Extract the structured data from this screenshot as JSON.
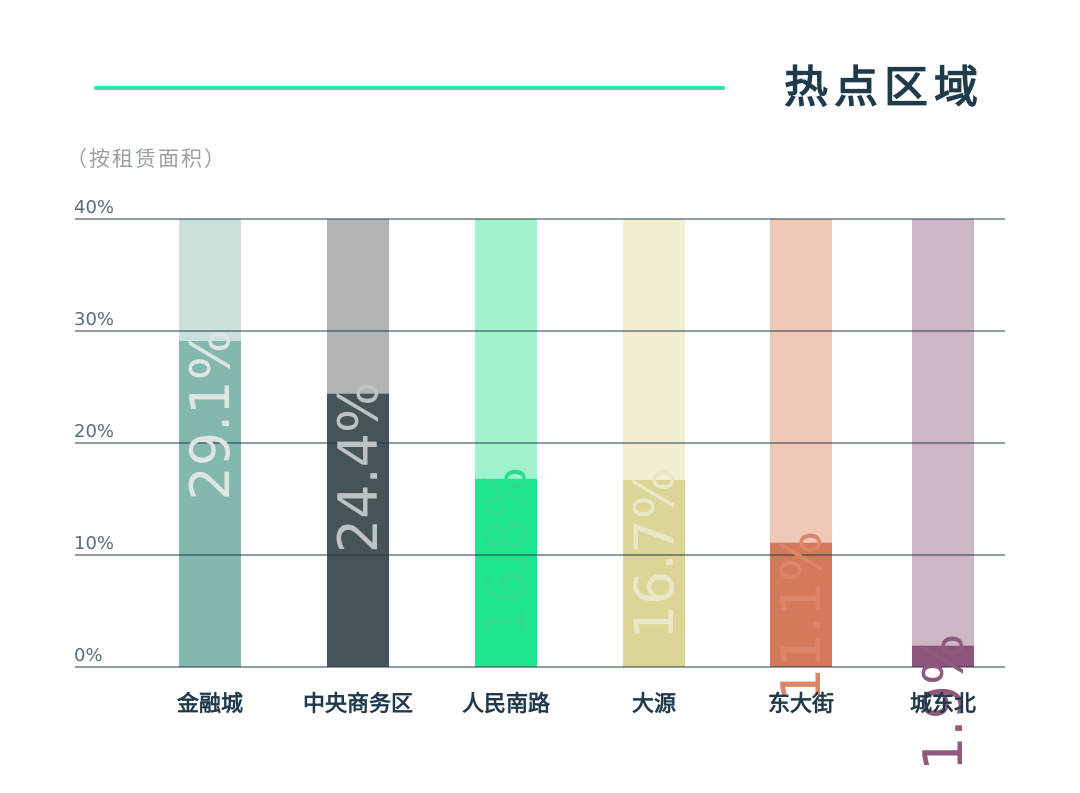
{
  "title": "热点区域",
  "subtitle": "（按租赁面积）",
  "colors": {
    "accent": "#2fe0a0",
    "title": "#1f3a4a",
    "grid": "#1f3a4a",
    "axis_text": "#5a6e78"
  },
  "chart_data": {
    "type": "bar",
    "title": "热点区域",
    "subtitle": "（按租赁面积）",
    "ylim": [
      0,
      40
    ],
    "yticks": [
      0,
      10,
      20,
      30,
      40
    ],
    "ytick_labels": [
      "0%",
      "10%",
      "20%",
      "30%",
      "40%"
    ],
    "grid": true,
    "categories": [
      "金融城",
      "中央商务区",
      "人民南路",
      "大源",
      "东大街",
      "城东北"
    ],
    "values": [
      29.1,
      24.4,
      16.8,
      16.7,
      11.1,
      1.9
    ],
    "value_labels": [
      "29.1%",
      "24.4%",
      "16.8%",
      "16.7%",
      "11.1%",
      "1.9%"
    ],
    "bar_colors": [
      "#82b8ad",
      "#465357",
      "#1ee58f",
      "#dbd696",
      "#d4795a",
      "#8c5579"
    ],
    "track_colors": [
      "#c9e0dc",
      "#b0b4b6",
      "#a0f3cf",
      "#f1eed3",
      "#f0c8b9",
      "#cdb6c6"
    ],
    "label_colors": [
      "#dfe5e3",
      "#bdc2c4",
      "#2bdd8c",
      "#eae6c8",
      "#dc8568",
      "#8f5a7c"
    ]
  }
}
